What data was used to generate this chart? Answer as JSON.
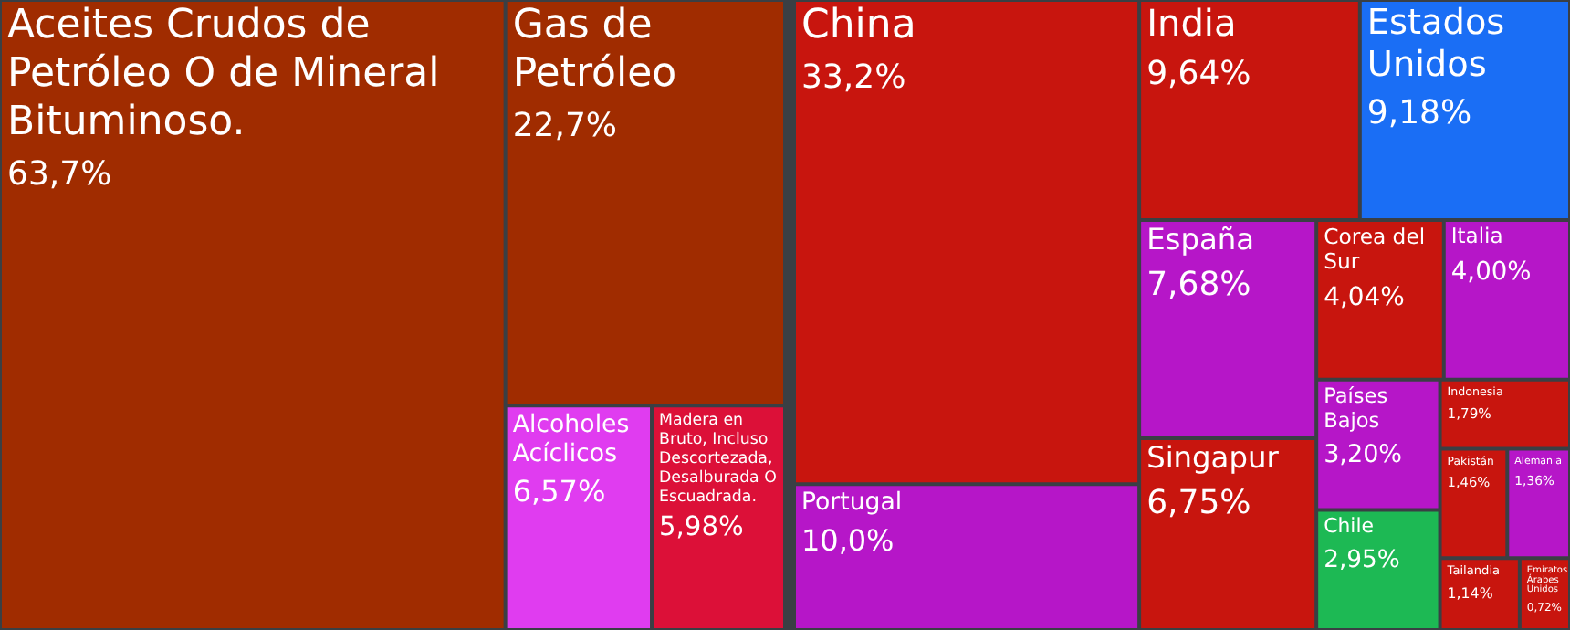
{
  "chart_data": [
    {
      "type": "other",
      "categories": [
        "Aceites Crudos de Petróleo O de Mineral Bituminoso.",
        "Gas de Petróleo",
        "Alcoholes Acíclicos",
        "Madera en Bruto, Incluso Descortezada, Desalburada O Escuadrada."
      ],
      "values": [
        63.7,
        22.7,
        6.57,
        5.98
      ],
      "value_labels": [
        "63,7%",
        "22,7%",
        "6,57%",
        "5,98%"
      ],
      "colors": [
        "#a02c00",
        "#a02c00",
        "#e03cf0",
        "#dc1038"
      ]
    },
    {
      "type": "other",
      "categories": [
        "China",
        "India",
        "Singapur",
        "Corea del Sur",
        "Indonesia",
        "Pakistán",
        "Tailandia",
        "Emiratos Árabes Unidos",
        "Portugal",
        "España",
        "Italia",
        "Países Bajos",
        "Alemania",
        "Estados Unidos",
        "Chile"
      ],
      "values": [
        33.2,
        9.64,
        6.75,
        4.04,
        1.79,
        1.46,
        1.14,
        0.72,
        10.0,
        7.68,
        4.0,
        3.2,
        1.36,
        9.18,
        2.95
      ],
      "value_labels": [
        "33,2%",
        "9,64%",
        "6,75%",
        "4,04%",
        "1,79%",
        "1,46%",
        "1,14%",
        "0,72%",
        "10,0%",
        "7,68%",
        "4,00%",
        "3,20%",
        "1,36%",
        "9,18%",
        "2,95%"
      ],
      "colors": [
        "#c8150e",
        "#c8150e",
        "#c8150e",
        "#c8150e",
        "#c8150e",
        "#c8150e",
        "#c8150e",
        "#c8150e",
        "#b616c8",
        "#b616c8",
        "#b616c8",
        "#b616c8",
        "#b616c8",
        "#1a6ef5",
        "#1db954"
      ]
    }
  ]
}
